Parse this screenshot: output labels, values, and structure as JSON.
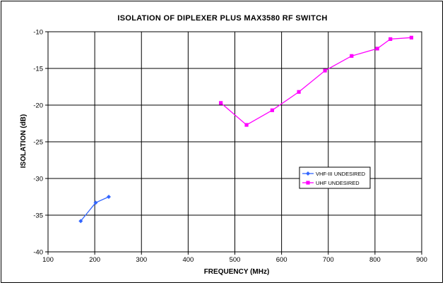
{
  "chart_data": {
    "type": "line",
    "title": "ISOLATION OF DIPLEXER PLUS MAX3580 RF SWITCH",
    "xlabel": "FREQUENCY (MHz)",
    "ylabel": "ISOLATION (dB)",
    "xlim": [
      100,
      900
    ],
    "ylim": [
      -40,
      -10
    ],
    "xticks": [
      100,
      200,
      300,
      400,
      500,
      600,
      700,
      800,
      900
    ],
    "yticks": [
      -10,
      -15,
      -20,
      -25,
      -30,
      -35,
      -40
    ],
    "grid": true,
    "legend_position": "right",
    "series": [
      {
        "name": "VHF-III UNDESIRED",
        "color": "#3366ff",
        "marker": "diamond",
        "points": [
          [
            170,
            -35.8
          ],
          [
            202,
            -33.3
          ],
          [
            230,
            -32.5
          ]
        ]
      },
      {
        "name": "UHF UNDESIRED",
        "color": "#ff00ff",
        "marker": "square",
        "points": [
          [
            470,
            -19.7
          ],
          [
            525,
            -22.7
          ],
          [
            580,
            -20.7
          ],
          [
            637,
            -18.2
          ],
          [
            693,
            -15.3
          ],
          [
            750,
            -13.3
          ],
          [
            805,
            -12.3
          ],
          [
            833,
            -11.0
          ],
          [
            878,
            -10.8
          ]
        ]
      }
    ]
  }
}
